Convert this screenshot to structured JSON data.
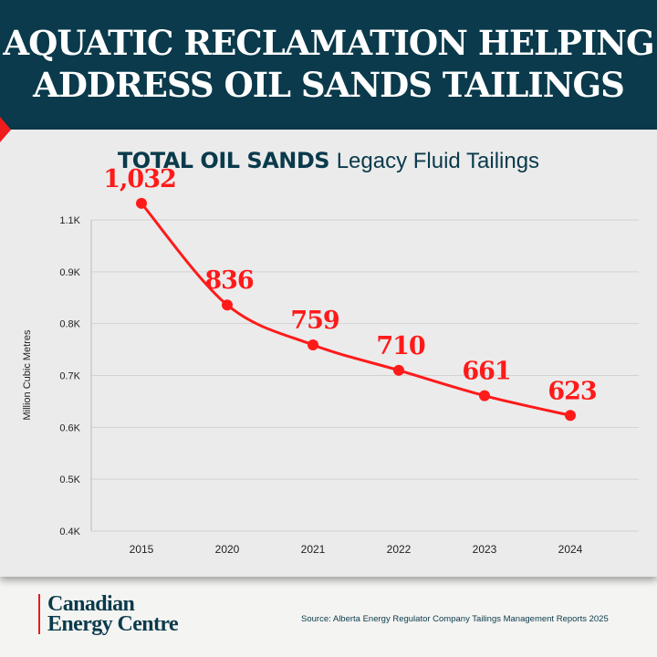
{
  "header": {
    "title_line1": "AQUATIC RECLAMATION HELPING",
    "title_line2": "ADDRESS OIL SANDS TAILINGS"
  },
  "colors": {
    "header_bg": "#0a3a4b",
    "accent": "#ee1c1c",
    "series": "#ff1a1a",
    "panel": "#ebebeb"
  },
  "chart_data": {
    "type": "line",
    "title_bold": "TOTAL OIL SANDS",
    "title_light": "Legacy Fluid Tailings",
    "ylabel": "Million Cubic Metres",
    "xlabel": "",
    "categories": [
      "2015",
      "2020",
      "2021",
      "2022",
      "2023",
      "2024"
    ],
    "values": [
      1032,
      836,
      759,
      710,
      661,
      623
    ],
    "data_labels": [
      "1,032",
      "836",
      "759",
      "710",
      "661",
      "623"
    ],
    "ytick_labels": [
      "0.4K",
      "0.5K",
      "0.6K",
      "0.7K",
      "0.8K",
      "0.9K",
      "1.1K"
    ],
    "ylim": [
      400,
      1000
    ],
    "grid": true,
    "smooth": true,
    "markers": true
  },
  "footer": {
    "logo_line1": "Canadian",
    "logo_line2": "Energy Centre",
    "source": "Source: Alberta Energy Regulator Company Tailings Management Reports 2025"
  }
}
